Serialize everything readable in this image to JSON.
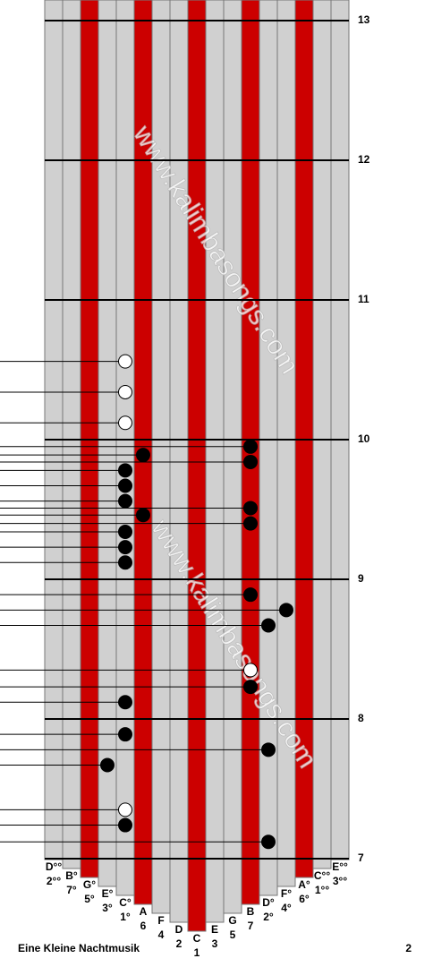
{
  "type": "kalimba-tab",
  "title": "Eine Kleine Nachtmusik",
  "page": "2",
  "watermark": "www.kalimbasongs.com",
  "ylim": [
    7,
    13
  ],
  "measures": [
    13,
    12,
    11,
    10,
    9,
    8,
    7
  ],
  "tines": [
    {
      "note": "D°°",
      "number": "2°°",
      "red": false
    },
    {
      "note": "B°",
      "number": "7°",
      "red": false
    },
    {
      "note": "G°",
      "number": "5°",
      "red": true
    },
    {
      "note": "E°",
      "number": "3°",
      "red": false
    },
    {
      "note": "C°",
      "number": "1°",
      "red": false
    },
    {
      "note": "A",
      "number": "6",
      "red": true
    },
    {
      "note": "F",
      "number": "4",
      "red": false
    },
    {
      "note": "D",
      "number": "2",
      "red": false
    },
    {
      "note": "C",
      "number": "1",
      "red": true
    },
    {
      "note": "E",
      "number": "3",
      "red": false
    },
    {
      "note": "G",
      "number": "5",
      "red": false
    },
    {
      "note": "B",
      "number": "7",
      "red": true
    },
    {
      "note": "D°",
      "number": "2°",
      "red": false
    },
    {
      "note": "F°",
      "number": "4°",
      "red": false
    },
    {
      "note": "A°",
      "number": "6°",
      "red": true
    },
    {
      "note": "C°°",
      "number": "1°°",
      "red": false
    },
    {
      "note": "E°°",
      "number": "3°°",
      "red": false
    }
  ],
  "notes": [
    {
      "tine": 4,
      "measure": 10.56,
      "open": true
    },
    {
      "tine": 4,
      "measure": 10.34,
      "open": true
    },
    {
      "tine": 4,
      "measure": 10.12,
      "open": true
    },
    {
      "tine": 11,
      "measure": 9.95,
      "open": false
    },
    {
      "tine": 5,
      "measure": 9.89,
      "open": false
    },
    {
      "tine": 11,
      "measure": 9.84,
      "open": false
    },
    {
      "tine": 4,
      "measure": 9.78,
      "open": false
    },
    {
      "tine": 4,
      "measure": 9.67,
      "open": false
    },
    {
      "tine": 4,
      "measure": 9.56,
      "open": false
    },
    {
      "tine": 11,
      "measure": 9.51,
      "open": false
    },
    {
      "tine": 5,
      "measure": 9.46,
      "open": false
    },
    {
      "tine": 11,
      "measure": 9.4,
      "open": false
    },
    {
      "tine": 4,
      "measure": 9.34,
      "open": false
    },
    {
      "tine": 4,
      "measure": 9.23,
      "open": false
    },
    {
      "tine": 4,
      "measure": 9.12,
      "open": false
    },
    {
      "tine": 11,
      "measure": 8.89,
      "open": false
    },
    {
      "tine": 13,
      "measure": 8.78,
      "open": false
    },
    {
      "tine": 12,
      "measure": 8.67,
      "open": false
    },
    {
      "tine": 11,
      "measure": 8.35,
      "open": true
    },
    {
      "tine": 11,
      "measure": 8.23,
      "open": false
    },
    {
      "tine": 4,
      "measure": 8.12,
      "open": false
    },
    {
      "tine": 4,
      "measure": 7.89,
      "open": false
    },
    {
      "tine": 12,
      "measure": 7.78,
      "open": false
    },
    {
      "tine": 3,
      "measure": 7.67,
      "open": false
    },
    {
      "tine": 4,
      "measure": 7.35,
      "open": true
    },
    {
      "tine": 4,
      "measure": 7.24,
      "open": false
    },
    {
      "tine": 12,
      "measure": 7.12,
      "open": false
    }
  ]
}
